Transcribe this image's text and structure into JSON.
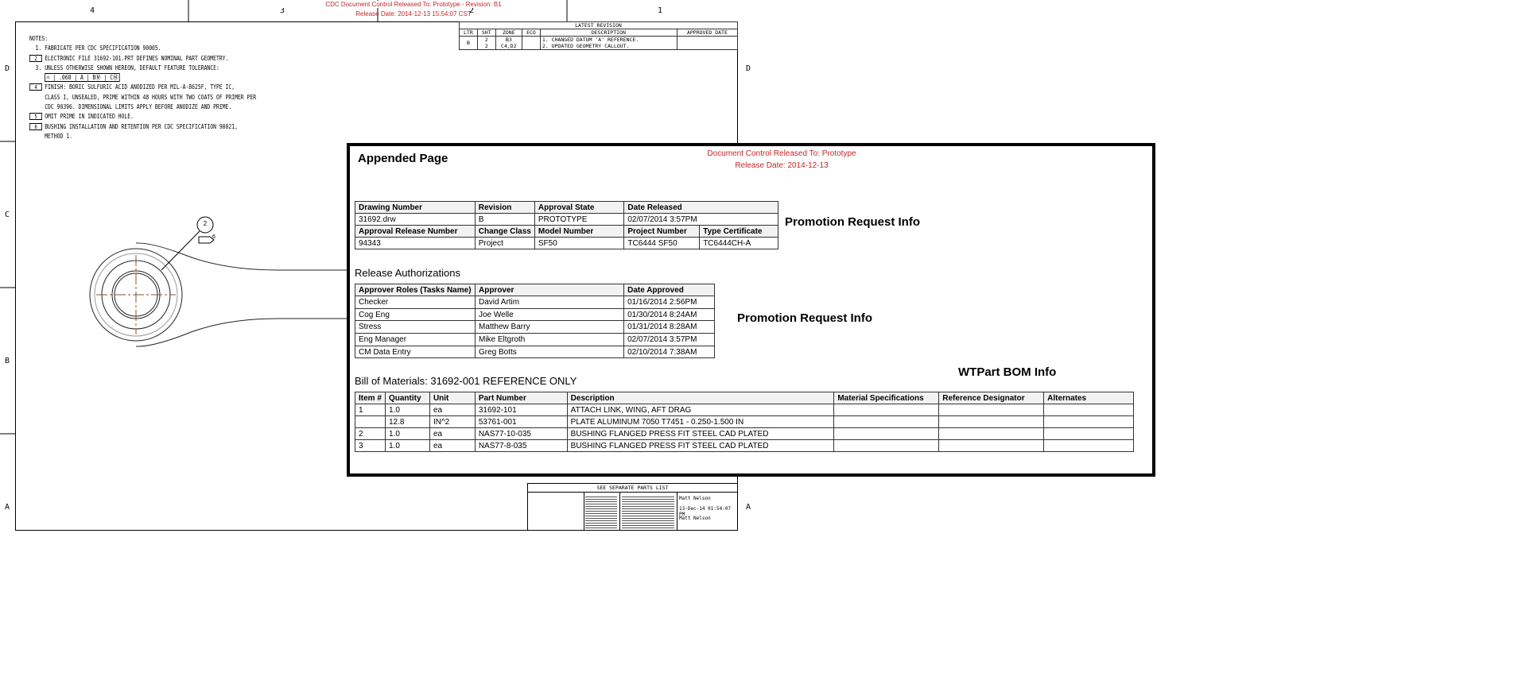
{
  "header": {
    "release_line1": "CDC Document Control Released To: Prototype - Revision: B1",
    "release_line2": "Release Date: 2014-12-13 15:54:07 CST"
  },
  "zones": {
    "columns": [
      "4",
      "3",
      "2",
      "1"
    ],
    "rows": [
      "D",
      "C",
      "B",
      "A"
    ]
  },
  "notes": {
    "title": "NOTES:",
    "items": [
      {
        "marker": "1.",
        "text": "FABRICATE PER CDC SPECIFICATION 90005.",
        "flag": false
      },
      {
        "marker": "2",
        "text": "ELECTRONIC FILE 31692-101.PRT DEFINES NOMINAL PART GEOMETRY.",
        "flag": true
      },
      {
        "marker": "3.",
        "text": "UNLESS OTHERWISE SHOWN HEREON, DEFAULT FEATURE TOLERANCE:",
        "flag": false
      },
      {
        "marker": "",
        "text": "⌓ | .060 | A | BⓂ | CⓂ",
        "flag": false
      },
      {
        "marker": "4",
        "text": "FINISH: BORIC SULFURIC ACID ANODIZED PER MIL-A-8625F, TYPE IC,",
        "flag": true
      },
      {
        "marker": "",
        "text": "CLASS I, UNSEALED, PRIME WITHIN 48 HOURS WITH TWO COATS OF PRIMER PER",
        "flag": false
      },
      {
        "marker": "",
        "text": "CDC 90396. DIMENSIONAL LIMITS APPLY BEFORE ANODIZE AND PRIME.",
        "flag": false
      },
      {
        "marker": "5",
        "text": "OMIT PRIME IN INDICATED HOLE.",
        "flag": true
      },
      {
        "marker": "6",
        "text": "BUSHING INSTALLATION AND RETENTION PER CDC SPECIFICATION 90021,",
        "flag": true
      },
      {
        "marker": "",
        "text": "METHOD 1.",
        "flag": false
      }
    ]
  },
  "revision": {
    "title": "LATEST REVISION",
    "headers": [
      "LTR",
      "SHT",
      "ZONE",
      "ECO",
      "DESCRIPTION",
      "APPROVED DATE"
    ],
    "ltr": "B",
    "sht": "2\n2",
    "zone": "B3\nC4,D2",
    "eco": "",
    "description": "1. CHANGED DATUM 'A' REFERENCE.\n2. UPDATED GEOMETRY CALLOUT.",
    "approved": ""
  },
  "drawing": {
    "balloon": "2",
    "flag": "6"
  },
  "appended": {
    "title": "Appended Page",
    "release_to": "Document Control Released To: Prototype",
    "release_date": "Release Date: 2014-12-13",
    "promo_label_1": "Promotion Request Info",
    "promo_label_2": "Promotion Request Info",
    "bom_label": "WTPart BOM Info",
    "info": {
      "h1": [
        "Drawing Number",
        "Revision",
        "Approval State",
        "Date Released"
      ],
      "r1": [
        "31692.drw",
        "B",
        "PROTOTYPE",
        "02/07/2014 3:57PM"
      ],
      "h2": [
        "Approval Release Number",
        "Change Class",
        "Model Number",
        "Project Number",
        "Type Certificate"
      ],
      "r2": [
        "94343",
        "Project",
        "SF50",
        "TC6444 SF50",
        "TC6444CH-A"
      ]
    },
    "auth_title": "Release Authorizations",
    "auth": {
      "headers": [
        "Approver Roles (Tasks Name)",
        "Approver",
        "Date Approved"
      ],
      "rows": [
        [
          "Checker",
          "David Artim",
          "01/16/2014 2:56PM"
        ],
        [
          "Cog Eng",
          "Joe Welle",
          "01/30/2014 8:24AM"
        ],
        [
          "Stress",
          "Matthew Barry",
          "01/31/2014 8:28AM"
        ],
        [
          "Eng Manager",
          "Mike Eltgroth",
          "02/07/2014 3:57PM"
        ],
        [
          "CM Data Entry",
          "Greg Botts",
          "02/10/2014 7:38AM"
        ]
      ]
    },
    "bom_title": "Bill of Materials: 31692-001 REFERENCE ONLY",
    "bom": {
      "headers": [
        "Item #",
        "Quantity",
        "Unit",
        "Part Number",
        "Description",
        "Material Specifications",
        "Reference Designator",
        "Alternates"
      ],
      "rows": [
        [
          "1",
          "1.0",
          "ea",
          "31692-101",
          "ATTACH LINK, WING, AFT DRAG",
          "",
          "",
          ""
        ],
        [
          "",
          "12.8",
          "IN^2",
          "53761-001",
          "PLATE ALUMINUM 7050 T7451 - 0.250-1.500 IN",
          "",
          "",
          ""
        ],
        [
          "2",
          "1.0",
          "ea",
          "NAS77-10-035",
          "BUSHING FLANGED PRESS FIT STEEL CAD PLATED",
          "",
          "",
          ""
        ],
        [
          "3",
          "1.0",
          "ea",
          "NAS77-8-035",
          "BUSHING FLANGED PRESS FIT STEEL CAD PLATED",
          "",
          "",
          ""
        ]
      ]
    }
  },
  "title_block": {
    "parts_list": "SEE SEPARATE PARTS LIST",
    "drawn_by": "Matt Nelson",
    "drawn_date": "13-Dec-14 01:54:07 PM",
    "checked_by": "Matt Nelson"
  }
}
